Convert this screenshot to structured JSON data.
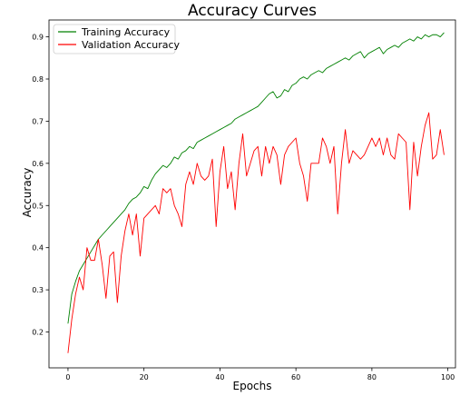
{
  "chart_data": {
    "type": "line",
    "title": "Accuracy Curves",
    "xlabel": "Epochs",
    "ylabel": "Accuracy",
    "xlim": [
      -5,
      102
    ],
    "ylim": [
      0.115,
      0.94
    ],
    "xticks": [
      0,
      20,
      40,
      60,
      80,
      100
    ],
    "yticks": [
      0.2,
      0.3,
      0.4,
      0.5,
      0.6,
      0.7,
      0.8,
      0.9
    ],
    "grid": false,
    "legend_position": "top-left",
    "x": [
      0,
      1,
      2,
      3,
      4,
      5,
      6,
      7,
      8,
      9,
      10,
      11,
      12,
      13,
      14,
      15,
      16,
      17,
      18,
      19,
      20,
      21,
      22,
      23,
      24,
      25,
      26,
      27,
      28,
      29,
      30,
      31,
      32,
      33,
      34,
      35,
      36,
      37,
      38,
      39,
      40,
      41,
      42,
      43,
      44,
      45,
      46,
      47,
      48,
      49,
      50,
      51,
      52,
      53,
      54,
      55,
      56,
      57,
      58,
      59,
      60,
      61,
      62,
      63,
      64,
      65,
      66,
      67,
      68,
      69,
      70,
      71,
      72,
      73,
      74,
      75,
      76,
      77,
      78,
      79,
      80,
      81,
      82,
      83,
      84,
      85,
      86,
      87,
      88,
      89,
      90,
      91,
      92,
      93,
      94,
      95,
      96,
      97,
      98,
      99
    ],
    "series": [
      {
        "name": "Training Accuracy",
        "color": "#008000",
        "values": [
          0.22,
          0.29,
          0.32,
          0.345,
          0.36,
          0.375,
          0.39,
          0.405,
          0.42,
          0.43,
          0.44,
          0.45,
          0.46,
          0.47,
          0.48,
          0.49,
          0.505,
          0.515,
          0.52,
          0.53,
          0.545,
          0.54,
          0.56,
          0.575,
          0.585,
          0.595,
          0.59,
          0.6,
          0.615,
          0.61,
          0.625,
          0.63,
          0.64,
          0.635,
          0.65,
          0.655,
          0.66,
          0.665,
          0.67,
          0.675,
          0.68,
          0.685,
          0.69,
          0.695,
          0.705,
          0.71,
          0.715,
          0.72,
          0.725,
          0.73,
          0.735,
          0.745,
          0.755,
          0.765,
          0.77,
          0.755,
          0.76,
          0.775,
          0.77,
          0.785,
          0.79,
          0.8,
          0.805,
          0.8,
          0.81,
          0.815,
          0.82,
          0.815,
          0.825,
          0.83,
          0.835,
          0.84,
          0.845,
          0.85,
          0.845,
          0.855,
          0.86,
          0.865,
          0.85,
          0.86,
          0.865,
          0.87,
          0.875,
          0.86,
          0.87,
          0.875,
          0.88,
          0.875,
          0.885,
          0.89,
          0.895,
          0.89,
          0.9,
          0.895,
          0.905,
          0.9,
          0.905,
          0.905,
          0.9,
          0.91
        ]
      },
      {
        "name": "Validation Accuracy",
        "color": "#ff0000",
        "values": [
          0.15,
          0.23,
          0.29,
          0.33,
          0.3,
          0.4,
          0.37,
          0.37,
          0.42,
          0.36,
          0.28,
          0.38,
          0.39,
          0.27,
          0.38,
          0.44,
          0.48,
          0.43,
          0.48,
          0.38,
          0.47,
          0.48,
          0.49,
          0.5,
          0.48,
          0.54,
          0.53,
          0.54,
          0.5,
          0.48,
          0.45,
          0.55,
          0.58,
          0.55,
          0.6,
          0.57,
          0.56,
          0.57,
          0.61,
          0.45,
          0.58,
          0.64,
          0.54,
          0.58,
          0.49,
          0.6,
          0.67,
          0.57,
          0.6,
          0.63,
          0.64,
          0.57,
          0.64,
          0.6,
          0.64,
          0.62,
          0.55,
          0.62,
          0.64,
          0.65,
          0.66,
          0.6,
          0.57,
          0.51,
          0.6,
          0.6,
          0.6,
          0.66,
          0.64,
          0.6,
          0.64,
          0.48,
          0.6,
          0.68,
          0.6,
          0.63,
          0.62,
          0.61,
          0.62,
          0.64,
          0.66,
          0.64,
          0.66,
          0.62,
          0.66,
          0.62,
          0.61,
          0.67,
          0.66,
          0.65,
          0.49,
          0.65,
          0.57,
          0.64,
          0.69,
          0.72,
          0.61,
          0.62,
          0.68,
          0.62
        ]
      }
    ]
  }
}
